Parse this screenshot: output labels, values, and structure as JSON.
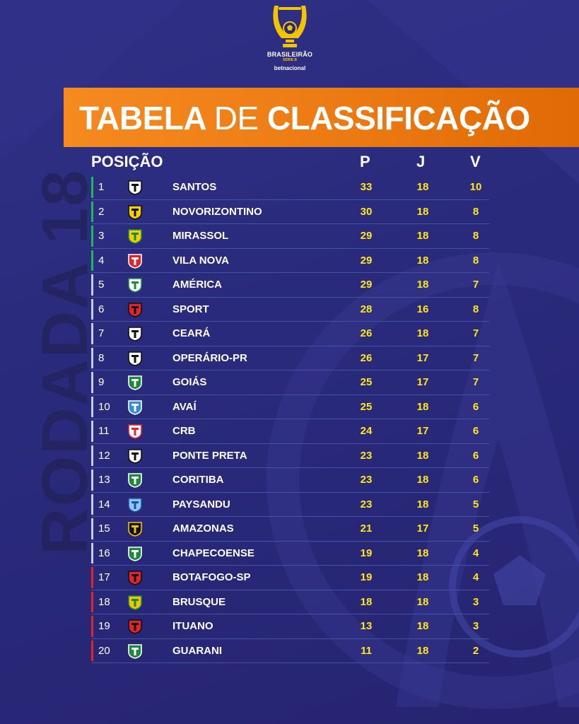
{
  "brand": {
    "league_name": "BRASILEIRÃO",
    "league_series": "SÉRIE B",
    "sponsor": "betnacional"
  },
  "side_label": "RODADA 18",
  "title": {
    "bold_left": "TABELA",
    "light_middle": "DE",
    "bold_right": "CLASSIFICAÇÃO"
  },
  "columns": {
    "position": "POSIÇÃO",
    "points": "P",
    "games": "J",
    "wins": "V"
  },
  "colors": {
    "background": "#2a2a7c",
    "banner": "#f07e18",
    "promotion": "#1db954",
    "neutral": "#c9cbe6",
    "relegation": "#e3232c",
    "numbers": "#ffe81a",
    "gold": "#f5c400"
  },
  "rows": [
    {
      "pos": "1",
      "team": "SANTOS",
      "p": "33",
      "j": "18",
      "v": "10",
      "zone": "promotion",
      "crest": "santos-crest-icon",
      "c1": "#ffffff",
      "c2": "#111111"
    },
    {
      "pos": "2",
      "team": "NOVORIZONTINO",
      "p": "30",
      "j": "18",
      "v": "8",
      "zone": "promotion",
      "crest": "novorizontino-crest-icon",
      "c1": "#f5d000",
      "c2": "#111111"
    },
    {
      "pos": "3",
      "team": "MIRASSOL",
      "p": "29",
      "j": "18",
      "v": "8",
      "zone": "promotion",
      "crest": "mirassol-crest-icon",
      "c1": "#f5d000",
      "c2": "#1a8a3a"
    },
    {
      "pos": "4",
      "team": "VILA NOVA",
      "p": "29",
      "j": "18",
      "v": "8",
      "zone": "promotion",
      "crest": "vila-nova-crest-icon",
      "c1": "#e3232c",
      "c2": "#ffffff"
    },
    {
      "pos": "5",
      "team": "AMÉRICA",
      "p": "29",
      "j": "18",
      "v": "7",
      "zone": "neutral",
      "crest": "america-crest-icon",
      "c1": "#ffffff",
      "c2": "#1a8a3a"
    },
    {
      "pos": "6",
      "team": "SPORT",
      "p": "28",
      "j": "16",
      "v": "8",
      "zone": "neutral",
      "crest": "sport-crest-icon",
      "c1": "#e3232c",
      "c2": "#111111"
    },
    {
      "pos": "7",
      "team": "CEARÁ",
      "p": "26",
      "j": "18",
      "v": "7",
      "zone": "neutral",
      "crest": "ceara-crest-icon",
      "c1": "#ffffff",
      "c2": "#111111"
    },
    {
      "pos": "8",
      "team": "OPERÁRIO-PR",
      "p": "26",
      "j": "17",
      "v": "7",
      "zone": "neutral",
      "crest": "operario-pr-crest-icon",
      "c1": "#ffffff",
      "c2": "#111111"
    },
    {
      "pos": "9",
      "team": "GOIÁS",
      "p": "25",
      "j": "17",
      "v": "7",
      "zone": "neutral",
      "crest": "goias-crest-icon",
      "c1": "#1a8a3a",
      "c2": "#ffffff"
    },
    {
      "pos": "10",
      "team": "AVAÍ",
      "p": "25",
      "j": "18",
      "v": "6",
      "zone": "neutral",
      "crest": "avai-crest-icon",
      "c1": "#2f8fd8",
      "c2": "#ffffff"
    },
    {
      "pos": "11",
      "team": "CRB",
      "p": "24",
      "j": "17",
      "v": "6",
      "zone": "neutral",
      "crest": "crb-crest-icon",
      "c1": "#ffffff",
      "c2": "#e3232c"
    },
    {
      "pos": "12",
      "team": "PONTE PRETA",
      "p": "23",
      "j": "18",
      "v": "6",
      "zone": "neutral",
      "crest": "ponte-preta-crest-icon",
      "c1": "#ffffff",
      "c2": "#111111"
    },
    {
      "pos": "13",
      "team": "CORITIBA",
      "p": "23",
      "j": "18",
      "v": "6",
      "zone": "neutral",
      "crest": "coritiba-crest-icon",
      "c1": "#1a8a3a",
      "c2": "#ffffff"
    },
    {
      "pos": "14",
      "team": "PAYSANDU",
      "p": "23",
      "j": "18",
      "v": "5",
      "zone": "neutral",
      "crest": "paysandu-crest-icon",
      "c1": "#8fc8ff",
      "c2": "#1f4fa8"
    },
    {
      "pos": "15",
      "team": "AMAZONAS",
      "p": "21",
      "j": "17",
      "v": "5",
      "zone": "neutral",
      "crest": "amazonas-crest-icon",
      "c1": "#111111",
      "c2": "#f5c400"
    },
    {
      "pos": "16",
      "team": "CHAPECOENSE",
      "p": "19",
      "j": "18",
      "v": "4",
      "zone": "neutral",
      "crest": "chapecoense-crest-icon",
      "c1": "#1a8a3a",
      "c2": "#ffffff"
    },
    {
      "pos": "17",
      "team": "BOTAFOGO-SP",
      "p": "19",
      "j": "18",
      "v": "4",
      "zone": "relegation",
      "crest": "botafogo-sp-crest-icon",
      "c1": "#e3232c",
      "c2": "#111111"
    },
    {
      "pos": "18",
      "team": "BRUSQUE",
      "p": "18",
      "j": "18",
      "v": "3",
      "zone": "relegation",
      "crest": "brusque-crest-icon",
      "c1": "#f5c400",
      "c2": "#1a8a3a"
    },
    {
      "pos": "19",
      "team": "ITUANO",
      "p": "13",
      "j": "18",
      "v": "3",
      "zone": "relegation",
      "crest": "ituano-crest-icon",
      "c1": "#e3232c",
      "c2": "#111111"
    },
    {
      "pos": "20",
      "team": "GUARANI",
      "p": "11",
      "j": "18",
      "v": "2",
      "zone": "relegation",
      "crest": "guarani-crest-icon",
      "c1": "#1a8a3a",
      "c2": "#ffffff"
    }
  ]
}
